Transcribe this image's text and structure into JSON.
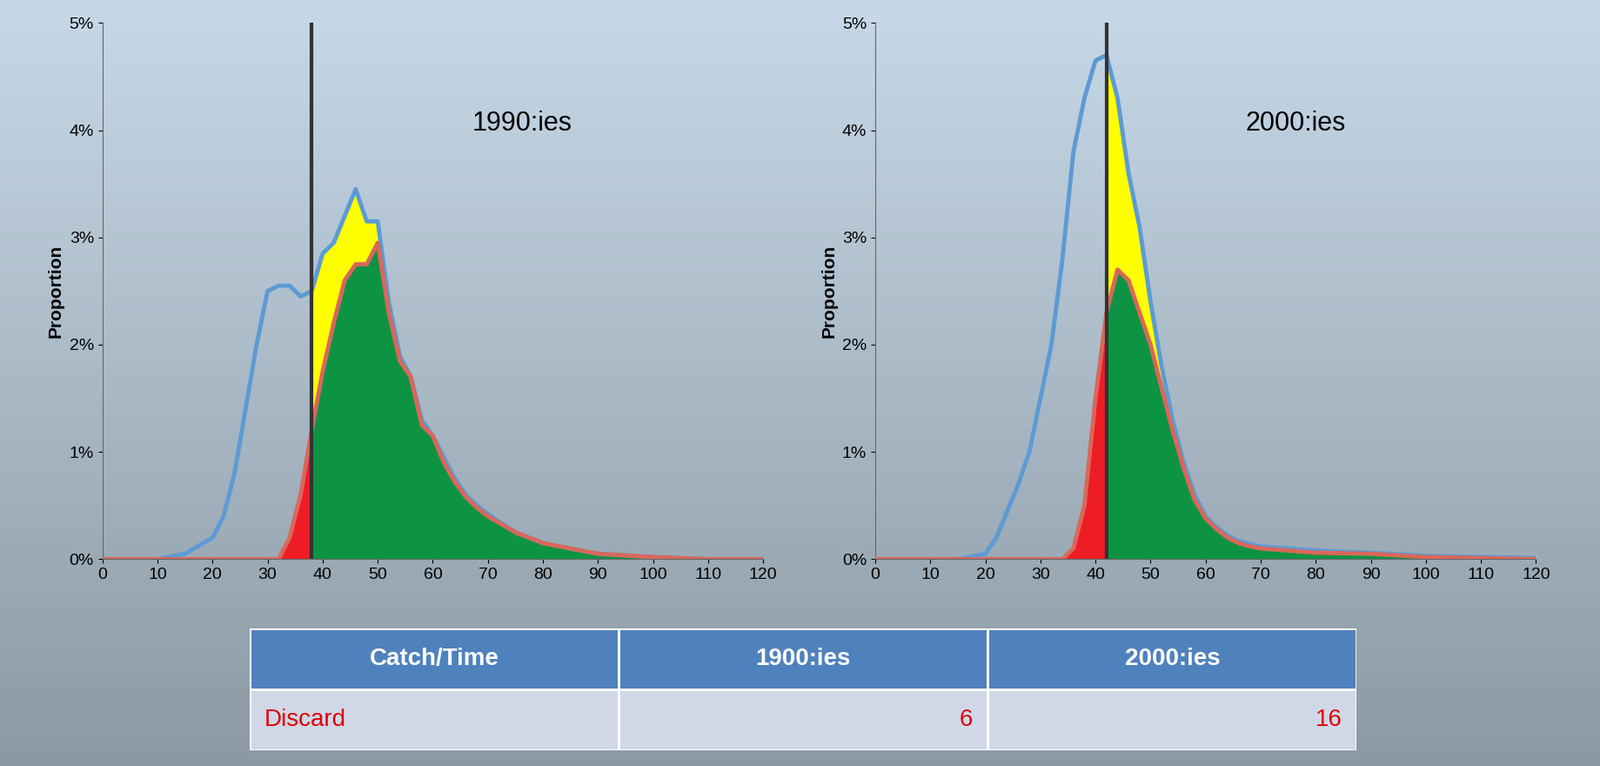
{
  "chart_data": [
    {
      "type": "line",
      "annotation": "1990:ies",
      "ylabel": "Proportion",
      "vline": 38,
      "x": [
        0,
        10,
        15,
        20,
        22,
        24,
        26,
        28,
        30,
        32,
        34,
        36,
        38,
        40,
        42,
        44,
        46,
        48,
        50,
        52,
        54,
        56,
        58,
        60,
        62,
        64,
        66,
        68,
        70,
        75,
        80,
        90,
        100,
        110,
        120
      ],
      "series": [
        {
          "color": "#5b9bd5",
          "values": [
            0,
            0,
            0.05,
            0.2,
            0.4,
            0.8,
            1.4,
            2.0,
            2.5,
            2.55,
            2.55,
            2.45,
            2.5,
            2.85,
            2.95,
            3.2,
            3.45,
            3.15,
            3.15,
            2.4,
            1.9,
            1.7,
            1.3,
            1.15,
            0.95,
            0.75,
            0.6,
            0.5,
            0.42,
            0.25,
            0.15,
            0.05,
            0.02,
            0,
            0
          ]
        },
        {
          "color": "#d9675a",
          "values": [
            0,
            0,
            0,
            0,
            0,
            0,
            0,
            0,
            0,
            0,
            0.2,
            0.6,
            1.2,
            1.75,
            2.2,
            2.6,
            2.75,
            2.75,
            2.95,
            2.3,
            1.85,
            1.7,
            1.25,
            1.15,
            0.9,
            0.72,
            0.58,
            0.48,
            0.4,
            0.25,
            0.15,
            0.05,
            0.02,
            0,
            0
          ]
        }
      ],
      "xlim": [
        0,
        120
      ],
      "xticks": [
        0,
        10,
        20,
        30,
        40,
        50,
        60,
        70,
        80,
        90,
        100,
        110,
        120
      ],
      "ylim": [
        0,
        5
      ],
      "yticks": [
        {
          "value": 0,
          "label": "0%"
        },
        {
          "value": 1,
          "label": "1%"
        },
        {
          "value": 2,
          "label": "2%"
        },
        {
          "value": 3,
          "label": "3%"
        },
        {
          "value": 4,
          "label": "4%"
        },
        {
          "value": 5,
          "label": "5%"
        }
      ]
    },
    {
      "type": "line",
      "annotation": "2000:ies",
      "ylabel": "Proportion",
      "vline": 42,
      "x": [
        0,
        10,
        15,
        20,
        22,
        24,
        26,
        28,
        30,
        32,
        34,
        36,
        38,
        40,
        42,
        44,
        46,
        48,
        50,
        52,
        54,
        56,
        58,
        60,
        62,
        64,
        66,
        68,
        70,
        75,
        80,
        90,
        100,
        110,
        120
      ],
      "series": [
        {
          "color": "#5b9bd5",
          "values": [
            0,
            0,
            0,
            0.05,
            0.2,
            0.45,
            0.7,
            1.0,
            1.5,
            2.0,
            2.8,
            3.8,
            4.3,
            4.65,
            4.7,
            4.3,
            3.6,
            3.1,
            2.4,
            1.8,
            1.3,
            0.9,
            0.6,
            0.4,
            0.3,
            0.22,
            0.17,
            0.14,
            0.12,
            0.1,
            0.08,
            0.06,
            0.03,
            0.02,
            0.01
          ]
        },
        {
          "color": "#d9675a",
          "values": [
            0,
            0,
            0,
            0,
            0,
            0,
            0,
            0,
            0,
            0,
            0,
            0.1,
            0.5,
            1.5,
            2.3,
            2.7,
            2.6,
            2.3,
            2.0,
            1.6,
            1.2,
            0.85,
            0.55,
            0.38,
            0.28,
            0.2,
            0.15,
            0.12,
            0.1,
            0.08,
            0.06,
            0.05,
            0.02,
            0.01,
            0
          ]
        }
      ],
      "xlim": [
        0,
        120
      ],
      "xticks": [
        0,
        10,
        20,
        30,
        40,
        50,
        60,
        70,
        80,
        90,
        100,
        110,
        120
      ],
      "ylim": [
        0,
        5
      ],
      "yticks": [
        {
          "value": 0,
          "label": "0%"
        },
        {
          "value": 1,
          "label": "1%"
        },
        {
          "value": 2,
          "label": "2%"
        },
        {
          "value": 3,
          "label": "3%"
        },
        {
          "value": 4,
          "label": "4%"
        },
        {
          "value": 5,
          "label": "5%"
        }
      ]
    }
  ],
  "table": {
    "header": [
      "Catch/Time",
      "1900:ies",
      "2000:ies"
    ],
    "rows": [
      [
        "Discard",
        6,
        16
      ]
    ]
  }
}
